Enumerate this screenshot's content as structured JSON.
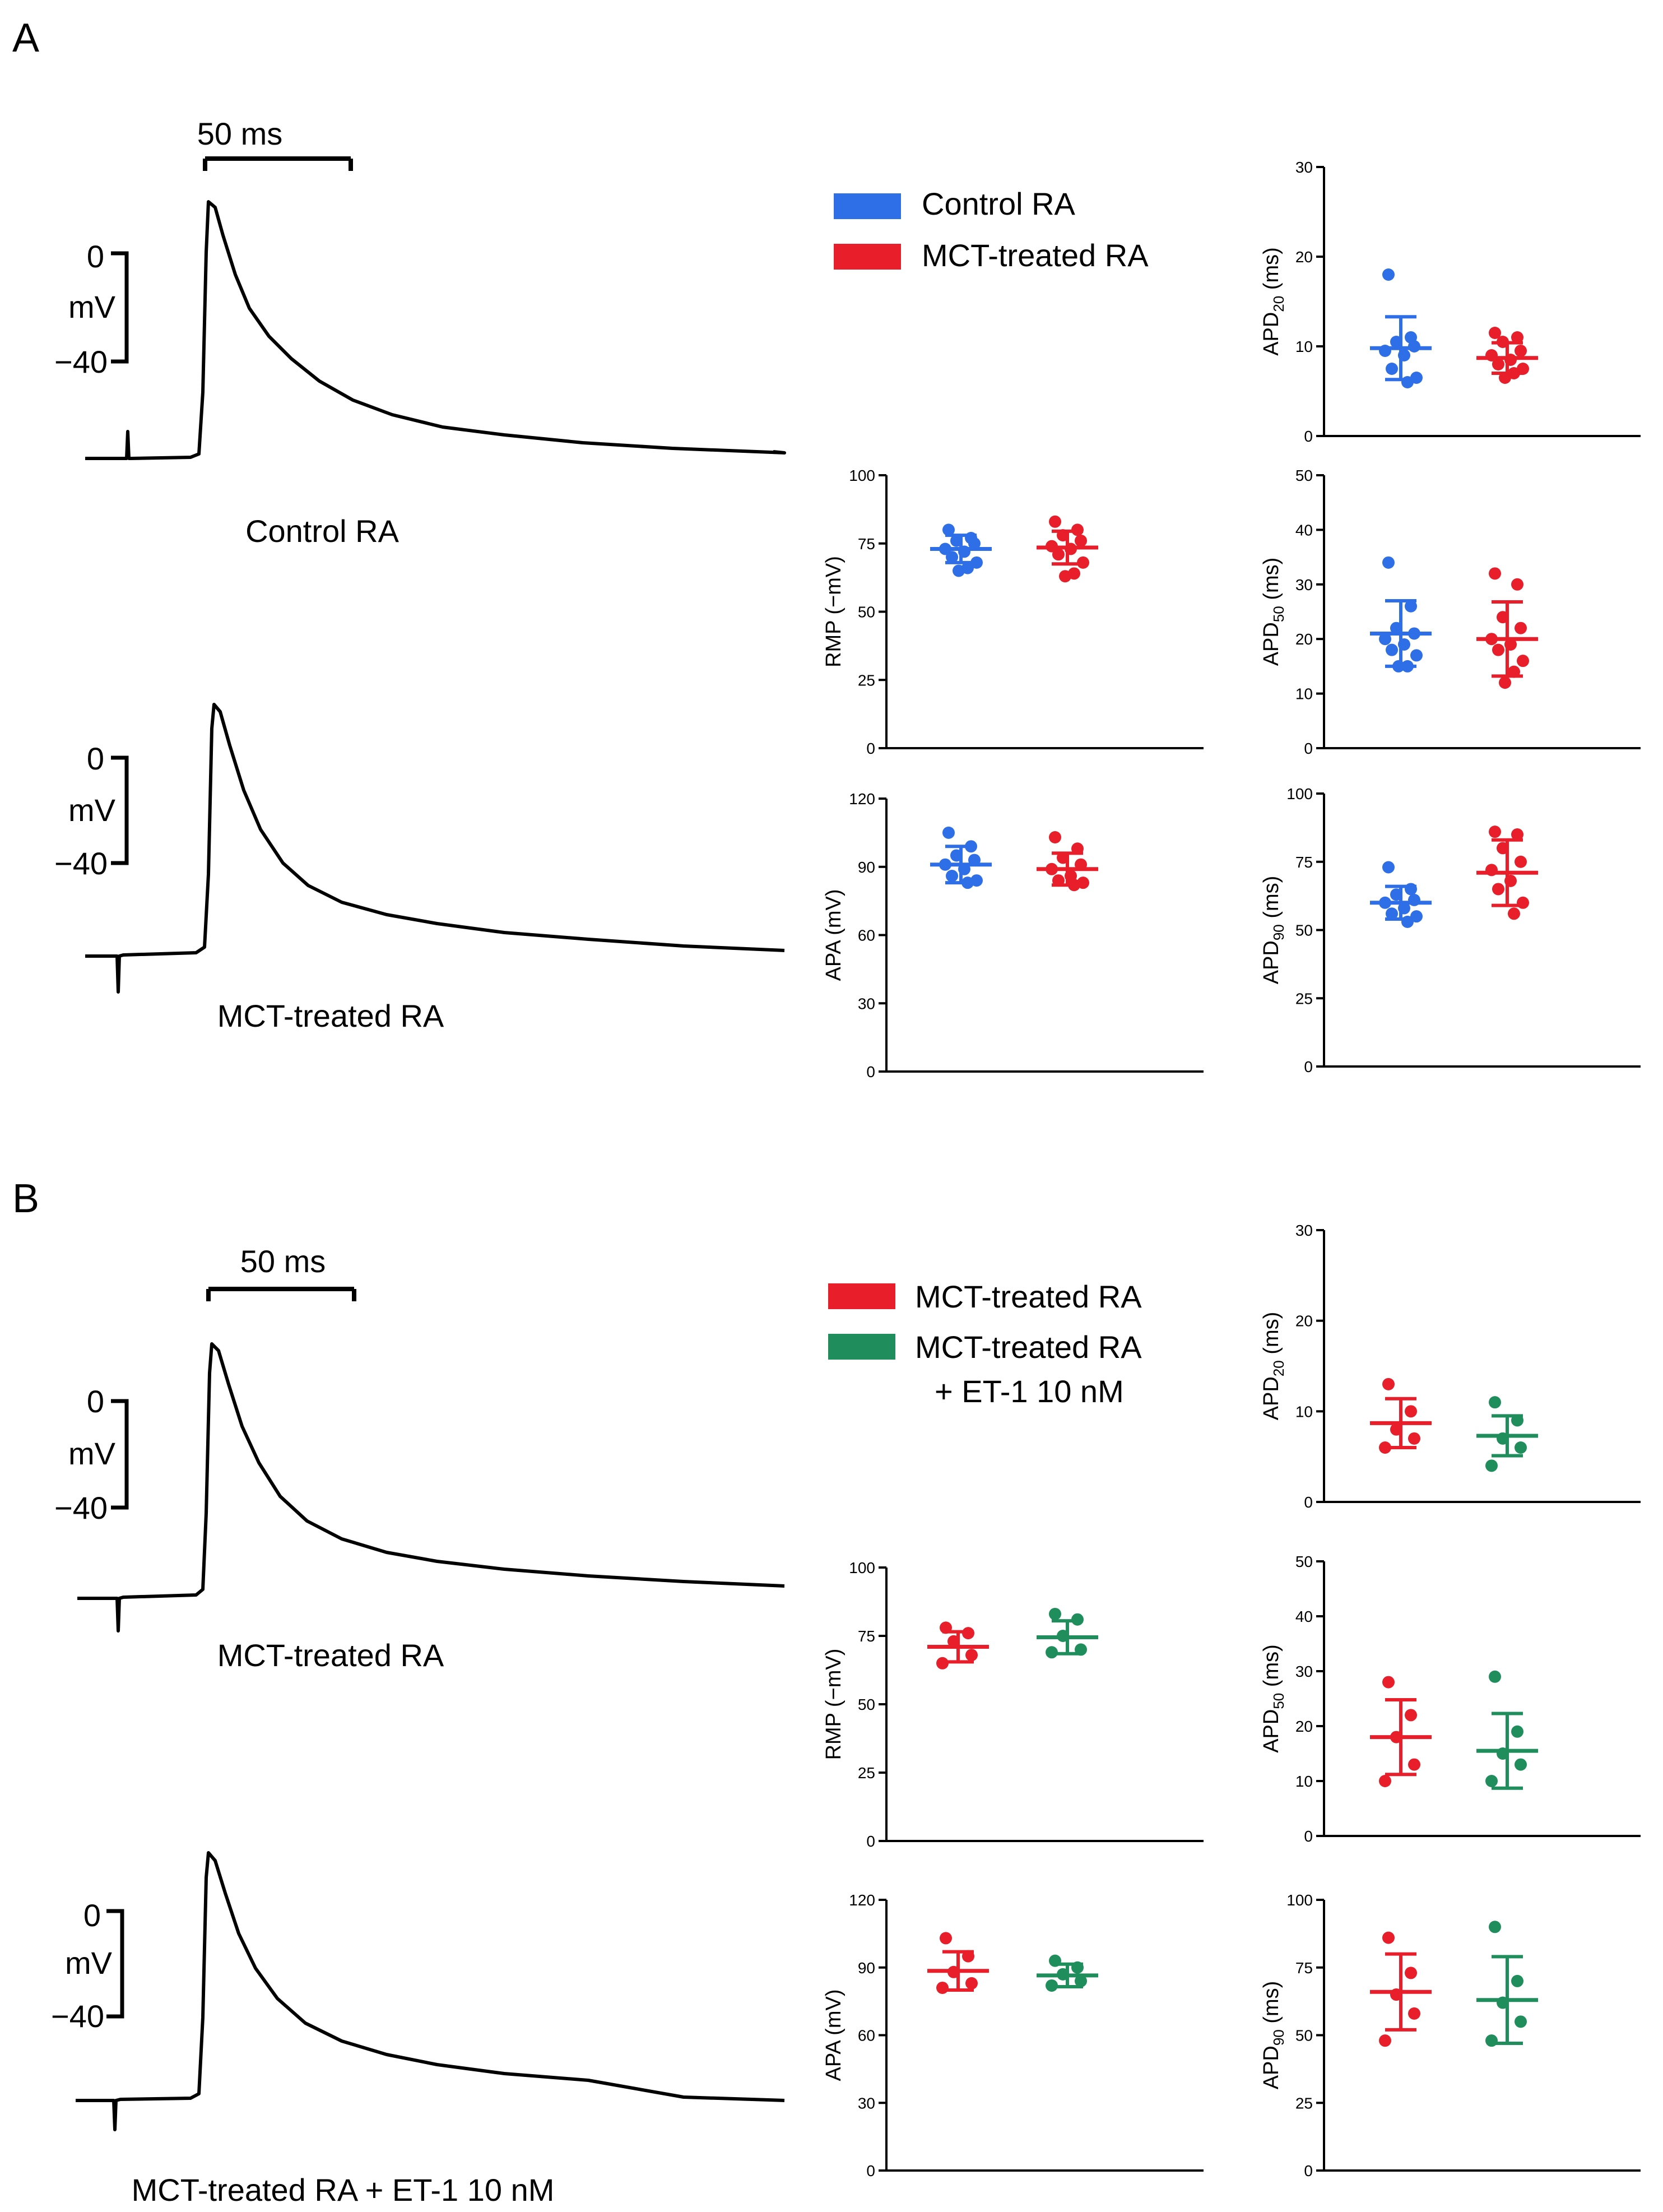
{
  "panels": [
    {
      "letter": "A",
      "scalebar_label": "50 ms",
      "traces": [
        {
          "caption": "Control RA",
          "v_top": "0",
          "v_unit": "mV",
          "v_bottom": "−40"
        },
        {
          "caption": "MCT-treated RA",
          "v_top": "0",
          "v_unit": "mV",
          "v_bottom": "−40"
        }
      ],
      "legend": [
        {
          "label": "Control RA",
          "color": "#2e6fe8"
        },
        {
          "label": "MCT-treated RA",
          "color": "#e81e2a"
        }
      ]
    },
    {
      "letter": "B",
      "scalebar_label": "50 ms",
      "traces": [
        {
          "caption": "MCT-treated RA",
          "v_top": "0",
          "v_unit": "mV",
          "v_bottom": "−40"
        },
        {
          "caption": "MCT-treated RA + ET-1 10 nM",
          "v_top": "0",
          "v_unit": "mV",
          "v_bottom": "−40"
        }
      ],
      "legend": [
        {
          "label": "MCT-treated RA",
          "color": "#e81e2a"
        },
        {
          "label": "MCT-treated RA",
          "label2": "+ ET-1 10 nM",
          "color": "#1f8e5c"
        }
      ]
    }
  ],
  "chart_data": [
    {
      "id": "A-APD20",
      "type": "scatter",
      "ylabel": "APD",
      "ylabel_sub": "20",
      "ylabel_unit": " (ms)",
      "ylim": [
        0,
        30
      ],
      "yticks": [
        0,
        10,
        20,
        30
      ],
      "groups": [
        {
          "name": "Control RA",
          "color": "#2e6fe8",
          "mean": 9.8,
          "sd": 3.5,
          "points": [
            18,
            11,
            10.5,
            10,
            9.5,
            9,
            7.5,
            6.5,
            6
          ]
        },
        {
          "name": "MCT-treated RA",
          "color": "#e81e2a",
          "mean": 8.7,
          "sd": 1.7,
          "points": [
            11.5,
            11,
            10.5,
            9.5,
            9,
            8.5,
            8,
            7.5,
            7,
            6.5
          ]
        }
      ]
    },
    {
      "id": "A-RMP",
      "type": "scatter",
      "ylabel": "RMP (−mV)",
      "ylim": [
        0,
        100
      ],
      "yticks": [
        0,
        25,
        50,
        75,
        100
      ],
      "groups": [
        {
          "name": "Control RA",
          "color": "#2e6fe8",
          "mean": 73,
          "sd": 5,
          "points": [
            80,
            77,
            76,
            75,
            73,
            72,
            70,
            68,
            66,
            65
          ]
        },
        {
          "name": "MCT-treated RA",
          "color": "#e81e2a",
          "mean": 73.5,
          "sd": 6,
          "points": [
            83,
            80,
            78,
            76,
            74,
            73,
            71,
            68,
            64,
            63
          ]
        }
      ]
    },
    {
      "id": "A-APA",
      "type": "scatter",
      "ylabel": "APA (mV)",
      "ylim": [
        0,
        120
      ],
      "yticks": [
        0,
        30,
        60,
        90,
        120
      ],
      "groups": [
        {
          "name": "Control RA",
          "color": "#2e6fe8",
          "mean": 91,
          "sd": 8,
          "points": [
            105,
            99,
            95,
            93,
            91,
            89,
            86,
            84,
            83
          ]
        },
        {
          "name": "MCT-treated RA",
          "color": "#e81e2a",
          "mean": 89,
          "sd": 7,
          "points": [
            103,
            98,
            94,
            91,
            89,
            86,
            84,
            83,
            82
          ]
        }
      ]
    },
    {
      "id": "A-APD50",
      "type": "scatter",
      "ylabel": "APD",
      "ylabel_sub": "50",
      "ylabel_unit": " (ms)",
      "ylim": [
        0,
        50
      ],
      "yticks": [
        0,
        10,
        20,
        30,
        40,
        50
      ],
      "groups": [
        {
          "name": "Control RA",
          "color": "#2e6fe8",
          "mean": 21,
          "sd": 6,
          "points": [
            34,
            26,
            22,
            21,
            20,
            19,
            18,
            17,
            15,
            15
          ]
        },
        {
          "name": "MCT-treated RA",
          "color": "#e81e2a",
          "mean": 20,
          "sd": 6.8,
          "points": [
            32,
            30,
            24,
            22,
            20,
            19,
            18,
            16,
            14,
            12
          ]
        }
      ]
    },
    {
      "id": "A-APD90",
      "type": "scatter",
      "ylabel": "APD",
      "ylabel_sub": "90",
      "ylabel_unit": " (ms)",
      "ylim": [
        0,
        100
      ],
      "yticks": [
        0,
        25,
        50,
        75,
        100
      ],
      "groups": [
        {
          "name": "Control RA",
          "color": "#2e6fe8",
          "mean": 60,
          "sd": 6,
          "points": [
            73,
            65,
            63,
            61,
            60,
            58,
            56,
            55,
            53
          ]
        },
        {
          "name": "MCT-treated RA",
          "color": "#e81e2a",
          "mean": 71,
          "sd": 12,
          "points": [
            86,
            85,
            80,
            75,
            72,
            68,
            65,
            60,
            56
          ]
        }
      ]
    },
    {
      "id": "B-APD20",
      "type": "scatter",
      "ylabel": "APD",
      "ylabel_sub": "20",
      "ylabel_unit": " (ms)",
      "ylim": [
        0,
        30
      ],
      "yticks": [
        0,
        10,
        20,
        30
      ],
      "groups": [
        {
          "name": "MCT-treated RA",
          "color": "#e81e2a",
          "mean": 8.7,
          "sd": 2.7,
          "points": [
            13,
            10,
            8,
            7,
            6
          ]
        },
        {
          "name": "MCT-treated RA + ET-1 10 nM",
          "color": "#1f8e5c",
          "mean": 7.3,
          "sd": 2.2,
          "points": [
            11,
            9,
            7,
            6,
            4
          ]
        }
      ]
    },
    {
      "id": "B-RMP",
      "type": "scatter",
      "ylabel": "RMP (−mV)",
      "ylim": [
        0,
        100
      ],
      "yticks": [
        0,
        25,
        50,
        75,
        100
      ],
      "groups": [
        {
          "name": "MCT-treated RA",
          "color": "#e81e2a",
          "mean": 71,
          "sd": 5.5,
          "points": [
            78,
            76,
            73,
            68,
            65
          ]
        },
        {
          "name": "MCT-treated RA + ET-1 10 nM",
          "color": "#1f8e5c",
          "mean": 74.5,
          "sd": 6,
          "points": [
            83,
            81,
            75,
            70,
            69
          ]
        }
      ]
    },
    {
      "id": "B-APA",
      "type": "scatter",
      "ylabel": "APA (mV)",
      "ylim": [
        0,
        120
      ],
      "yticks": [
        0,
        30,
        60,
        90,
        120
      ],
      "groups": [
        {
          "name": "MCT-treated RA",
          "color": "#e81e2a",
          "mean": 88.5,
          "sd": 8.5,
          "points": [
            103,
            95,
            88,
            83,
            81
          ]
        },
        {
          "name": "MCT-treated RA + ET-1 10 nM",
          "color": "#1f8e5c",
          "mean": 86.5,
          "sd": 5,
          "points": [
            93,
            90,
            87,
            84,
            82
          ]
        }
      ]
    },
    {
      "id": "B-APD50",
      "type": "scatter",
      "ylabel": "APD",
      "ylabel_sub": "50",
      "ylabel_unit": " (ms)",
      "ylim": [
        0,
        50
      ],
      "yticks": [
        0,
        10,
        20,
        30,
        40,
        50
      ],
      "groups": [
        {
          "name": "MCT-treated RA",
          "color": "#e81e2a",
          "mean": 18,
          "sd": 6.8,
          "points": [
            28,
            22,
            18,
            13,
            10
          ]
        },
        {
          "name": "MCT-treated RA + ET-1 10 nM",
          "color": "#1f8e5c",
          "mean": 15.5,
          "sd": 6.8,
          "points": [
            29,
            19,
            15,
            13,
            10
          ]
        }
      ]
    },
    {
      "id": "B-APD90",
      "type": "scatter",
      "ylabel": "APD",
      "ylabel_sub": "90",
      "ylabel_unit": " (ms)",
      "ylim": [
        0,
        100
      ],
      "yticks": [
        0,
        25,
        50,
        75,
        100
      ],
      "groups": [
        {
          "name": "MCT-treated RA",
          "color": "#e81e2a",
          "mean": 66,
          "sd": 14,
          "points": [
            86,
            73,
            65,
            58,
            48
          ]
        },
        {
          "name": "MCT-treated RA + ET-1 10 nM",
          "color": "#1f8e5c",
          "mean": 63,
          "sd": 16,
          "points": [
            90,
            70,
            62,
            55,
            48
          ]
        }
      ]
    }
  ]
}
